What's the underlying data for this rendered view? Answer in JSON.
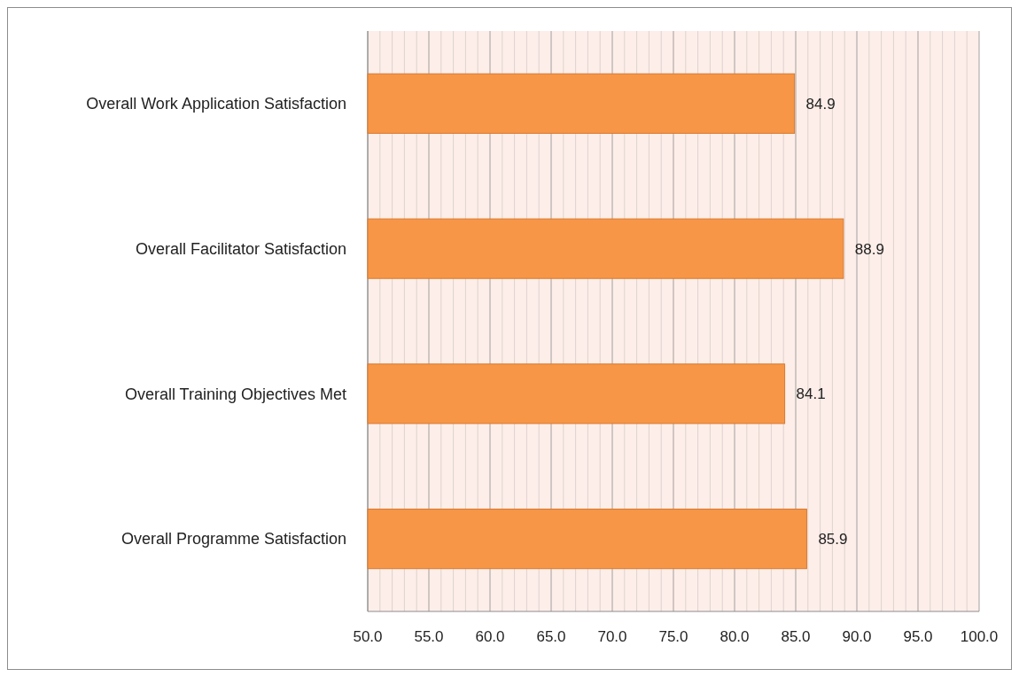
{
  "chart_data": {
    "type": "bar",
    "orientation": "horizontal",
    "categories": [
      "Overall Work Application Satisfaction",
      "Overall Facilitator Satisfaction",
      "Overall Training Objectives Met",
      "Overall Programme Satisfaction"
    ],
    "values": [
      84.9,
      88.9,
      84.1,
      85.9
    ],
    "color": "#f79646",
    "xlim": [
      50,
      100
    ],
    "xticks": [
      {
        "value": 50,
        "label": "50.0"
      },
      {
        "value": 55,
        "label": "55.0"
      },
      {
        "value": 60,
        "label": "60.0"
      },
      {
        "value": 65,
        "label": "65.0"
      },
      {
        "value": 70,
        "label": "70.0"
      },
      {
        "value": 75,
        "label": "75.0"
      },
      {
        "value": 80,
        "label": "80.0"
      },
      {
        "value": 85,
        "label": "85.0"
      },
      {
        "value": 90,
        "label": "90.0"
      },
      {
        "value": 95,
        "label": "95.0"
      },
      {
        "value": 100,
        "label": "100.0"
      }
    ],
    "grid": "x",
    "data_labels": true
  }
}
